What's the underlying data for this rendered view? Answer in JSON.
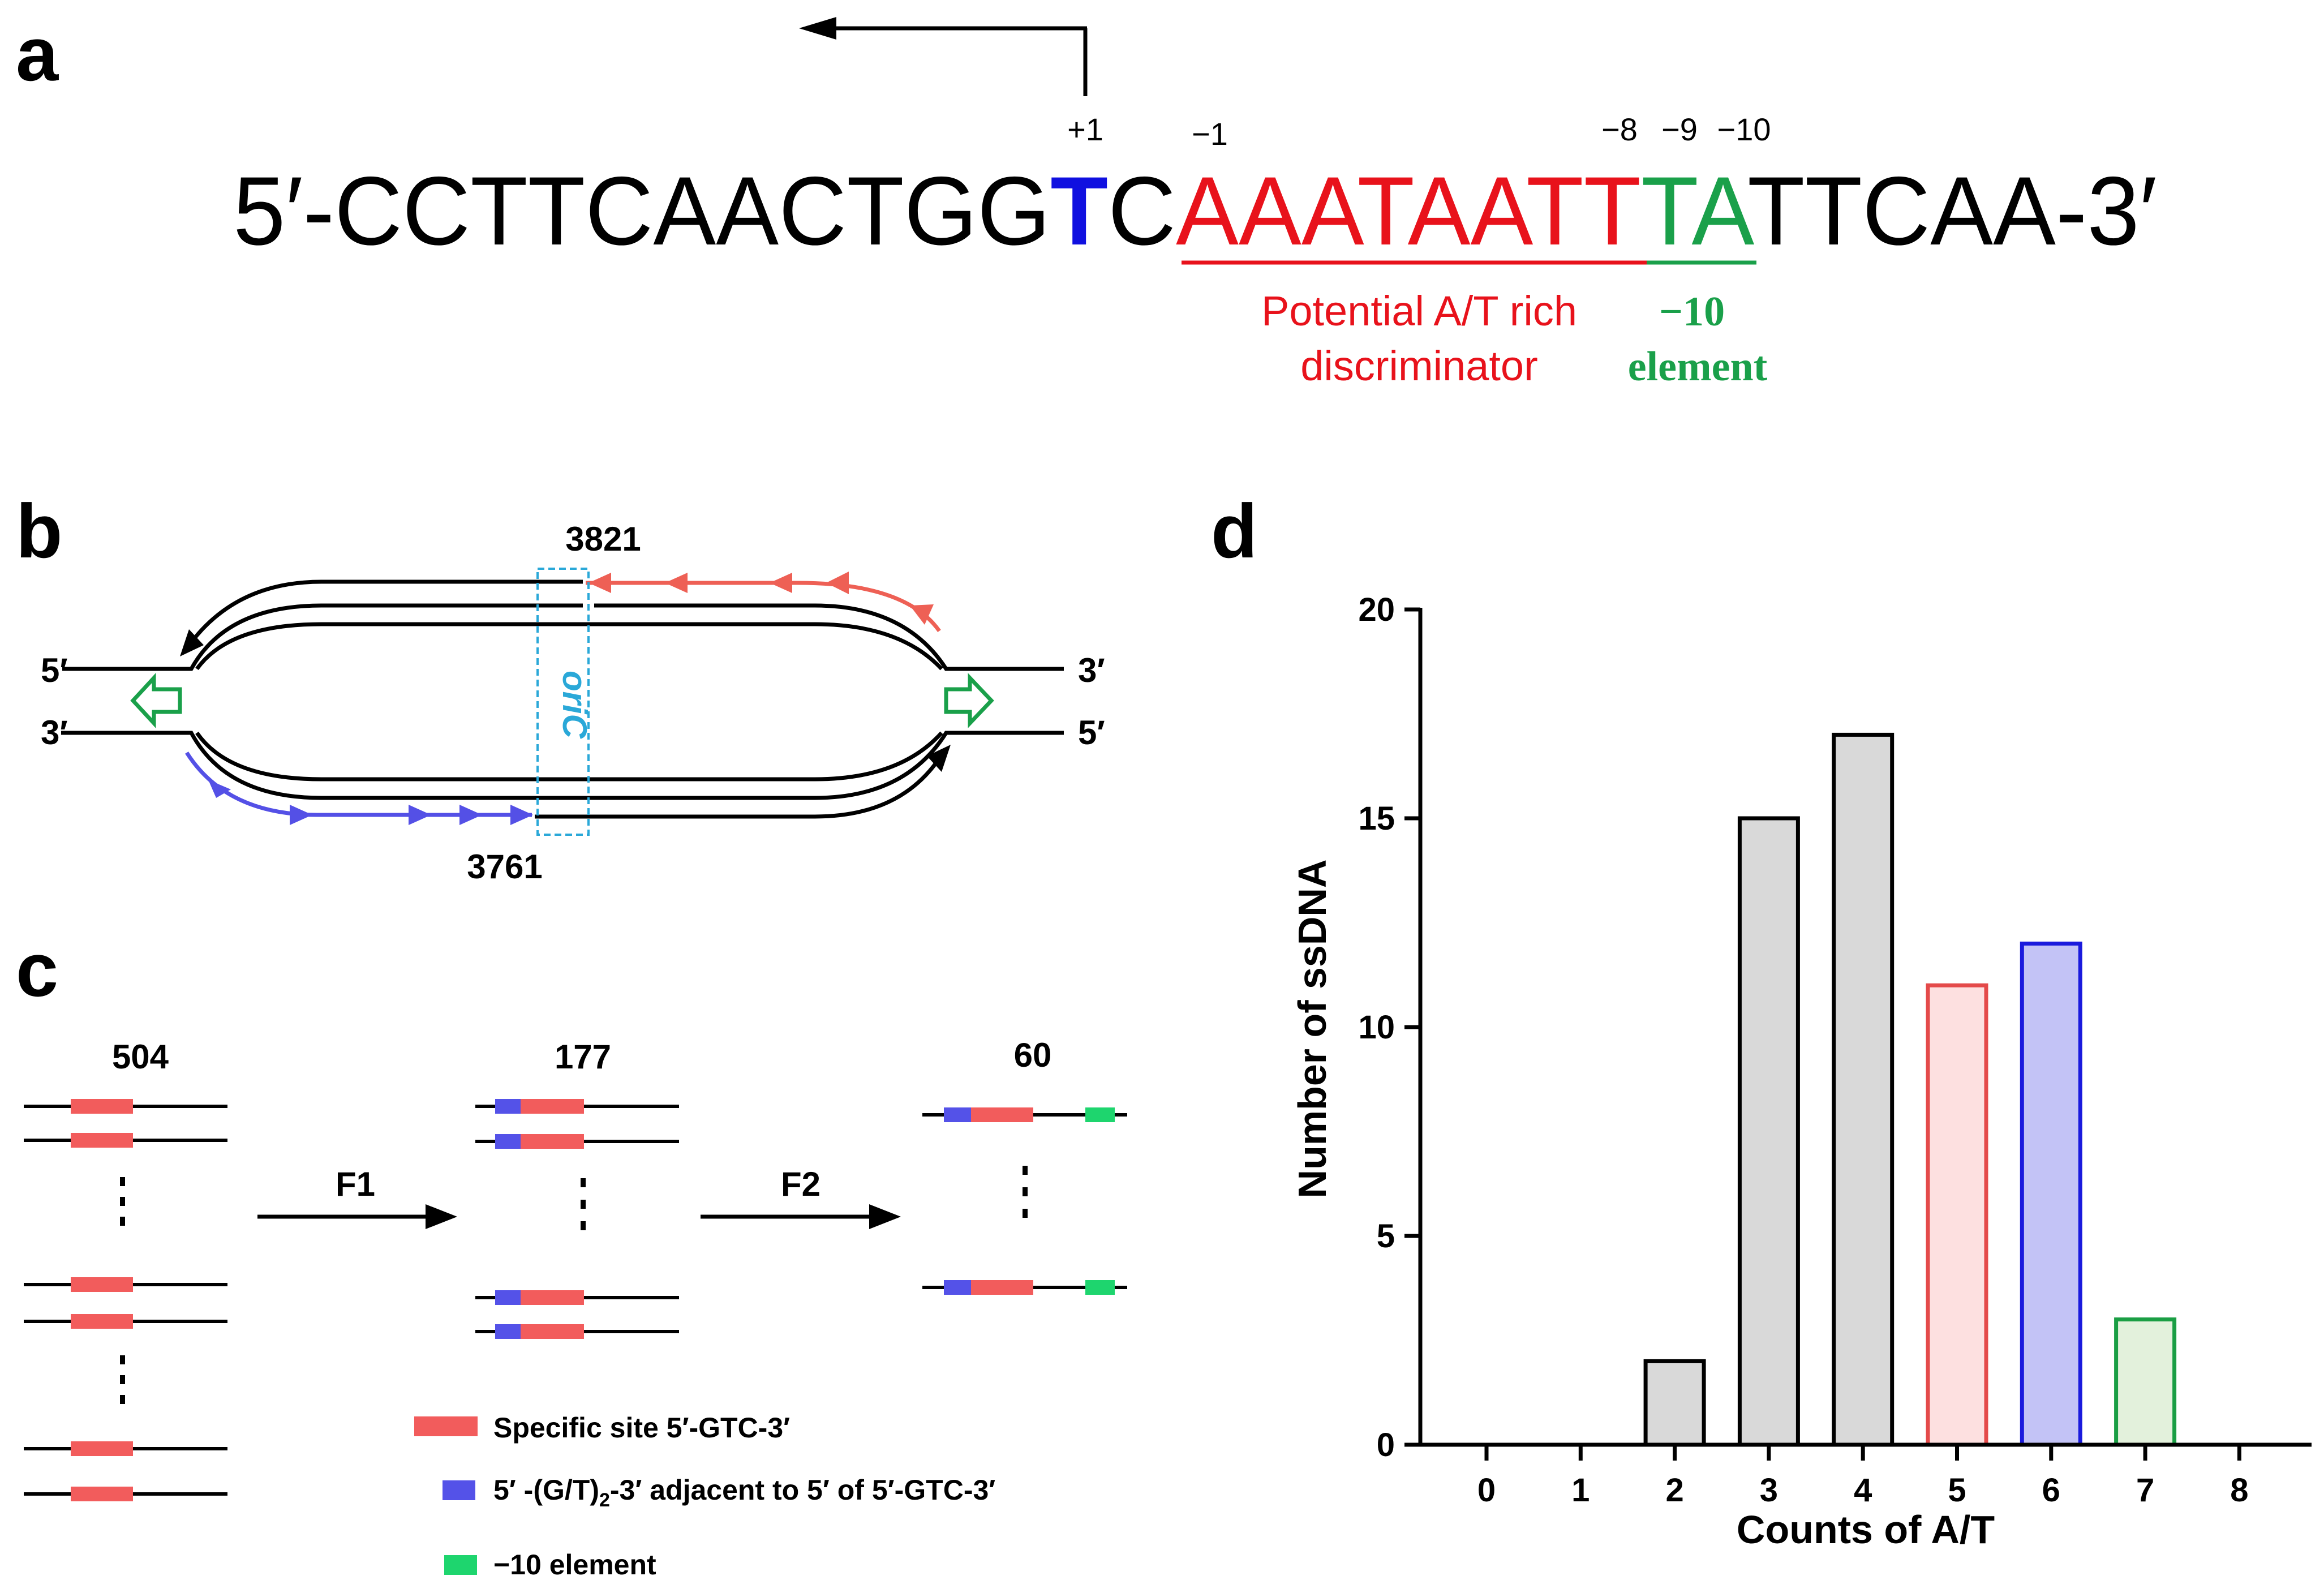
{
  "panels": {
    "a": "a",
    "b": "b",
    "c": "c",
    "d": "d"
  },
  "panel_a": {
    "seq_prefix": "5′-CCTTCAACTGG",
    "seq_tss": "T",
    "seq_c": "C",
    "seq_discriminator": "AAATAATT",
    "seq_minus10": "TA",
    "seq_suffix": "TTCAA-3′",
    "pos_plus1": "+1",
    "pos_minus1": "−1",
    "pos_minus8": "−8",
    "pos_minus9": "−9",
    "pos_minus10": "−10",
    "discriminator_label_line1": "Potential A/T rich",
    "discriminator_label_line2": "discriminator",
    "element_label_line1": "−10",
    "element_label_line2": "element",
    "colors": {
      "tss": "#1010e0",
      "discriminator": "#e8121b",
      "minus10": "#1aa04a"
    }
  },
  "panel_b": {
    "top_left": "5′",
    "bottom_left": "3′",
    "top_right": "3′",
    "bottom_right": "5′",
    "top_number": "3821",
    "bottom_number": "3761",
    "oric_label": "oriC",
    "colors": {
      "top_primer": "#ee6055",
      "bottom_primer": "#5450e6",
      "fork": "#1aa04a",
      "oric_box": "#2aa8d8"
    }
  },
  "panel_c": {
    "count_1": "504",
    "count_2": "177",
    "count_3": "60",
    "filter_1": "F1",
    "filter_2": "F2",
    "legend": [
      {
        "text_main": "Specific site 5′-GTC-3′",
        "sub": "",
        "text_tail": "",
        "color": "#f25c5c"
      },
      {
        "text_main": "5′ -(G/T)",
        "sub": "2",
        "text_tail": "-3′ adjacent to 5′ of 5′-GTC-3′",
        "color": "#5452e8"
      },
      {
        "text_main": "−10 element",
        "sub": "",
        "text_tail": "",
        "color": "#1ed56e"
      }
    ]
  },
  "chart_data": {
    "type": "bar",
    "categories": [
      "0",
      "1",
      "2",
      "3",
      "4",
      "5",
      "6",
      "7",
      "8"
    ],
    "values": [
      0,
      0,
      2,
      15,
      17,
      11,
      12,
      3,
      0
    ],
    "bar_fill": [
      "#d9d9d9",
      "#d9d9d9",
      "#d9d9d9",
      "#d9d9d9",
      "#d9d9d9",
      "#fde0e0",
      "#c3c3f6",
      "#e3f1dc",
      "#d9d9d9"
    ],
    "bar_stroke": [
      "#000000",
      "#000000",
      "#000000",
      "#000000",
      "#000000",
      "#e44a4a",
      "#1a1add",
      "#1a9e44",
      "#000000"
    ],
    "xlabel": "Counts of A/T",
    "ylabel": "Number of ssDNA",
    "ylim": [
      0,
      20
    ],
    "yticks": [
      0,
      5,
      10,
      15,
      20
    ],
    "title": ""
  }
}
